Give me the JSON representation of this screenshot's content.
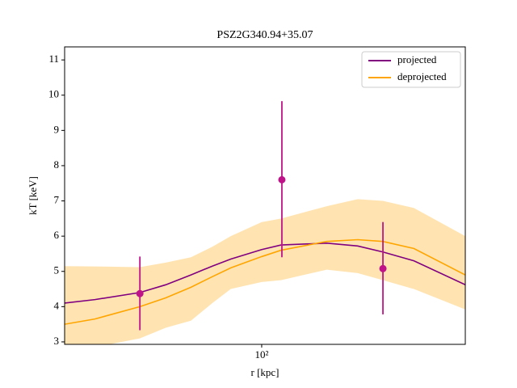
{
  "chart_data": {
    "type": "line",
    "title": "PSZ2G340.94+35.07",
    "xlabel": "r [kpc]",
    "ylabel": "kT [keV]",
    "xlog": true,
    "xlim": [
      24.1,
      435
    ],
    "ylim": [
      2.93,
      11.37
    ],
    "xticks": [
      {
        "value": 100,
        "label": "10²"
      }
    ],
    "yticks": [
      3,
      4,
      5,
      6,
      7,
      8,
      9,
      10,
      11
    ],
    "legend": "upper right",
    "x": [
      24.1,
      30,
      41.5,
      50,
      60,
      70,
      80,
      100,
      115,
      160,
      200,
      240,
      300,
      435
    ],
    "series": [
      {
        "name": "projected",
        "color": "#800080",
        "values": [
          4.1,
          4.2,
          4.4,
          4.62,
          4.9,
          5.15,
          5.35,
          5.62,
          5.75,
          5.8,
          5.72,
          5.55,
          5.3,
          4.62
        ]
      },
      {
        "name": "deprojected",
        "color": "#ffa500",
        "values": [
          3.5,
          3.65,
          4.0,
          4.25,
          4.55,
          4.85,
          5.1,
          5.42,
          5.6,
          5.85,
          5.9,
          5.85,
          5.65,
          4.9
        ]
      }
    ],
    "band": {
      "color": "#ffa500",
      "upper": [
        5.15,
        5.14,
        5.12,
        5.25,
        5.4,
        5.7,
        6.0,
        6.4,
        6.5,
        6.85,
        7.05,
        7.0,
        6.8,
        6.0
      ],
      "lower": [
        2.6,
        2.85,
        3.1,
        3.4,
        3.6,
        4.1,
        4.5,
        4.7,
        4.75,
        5.05,
        4.95,
        4.75,
        4.5,
        3.92
      ]
    },
    "points": {
      "color": "#c0138a",
      "x": [
        41.5,
        115.7,
        240
      ],
      "values": [
        4.37,
        7.6,
        5.08
      ],
      "yerr_low": [
        1.04,
        2.2,
        1.3
      ],
      "yerr_high": [
        1.05,
        2.23,
        1.32
      ]
    }
  }
}
